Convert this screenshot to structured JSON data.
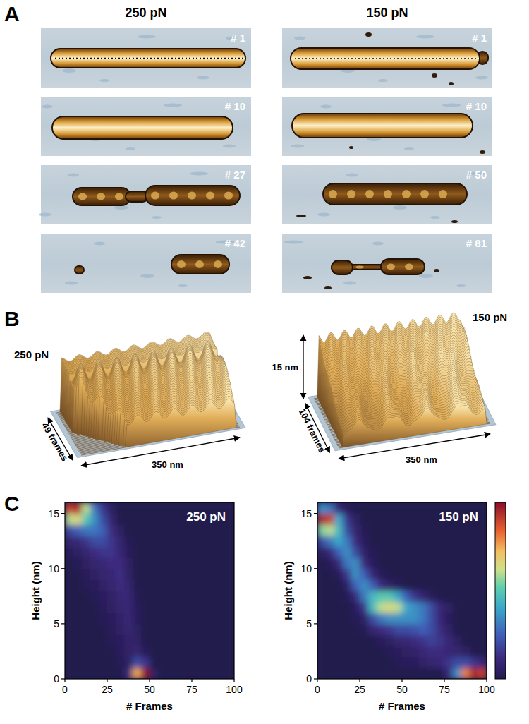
{
  "panel_labels": [
    "A",
    "B",
    "C"
  ],
  "panel_a": {
    "columns": [
      {
        "title": "250 pN",
        "frames": [
          "# 1",
          "# 10",
          "# 27",
          "# 42"
        ]
      },
      {
        "title": "150 pN",
        "frames": [
          "# 1",
          "# 10",
          "# 50",
          "# 81"
        ]
      }
    ]
  },
  "panel_b": {
    "plots": [
      {
        "title": "250 pN",
        "frames_label": "49 frames",
        "width_label": "350 nm"
      },
      {
        "title": "150 pN",
        "frames_label": "104 frames",
        "width_label": "350 nm",
        "height_label": "15 nm"
      }
    ]
  },
  "chart_data": [
    {
      "type": "heatmap",
      "title": "250 pN",
      "x_label": "# Frames",
      "y_label": "Height (nm)",
      "xlim": [
        0,
        100
      ],
      "ylim": [
        0,
        16
      ],
      "xticks": [
        0,
        25,
        50,
        75,
        100
      ],
      "yticks": [
        0,
        5,
        10,
        15
      ],
      "x_edges": [
        0,
        5,
        10,
        15,
        20,
        25,
        30,
        35,
        40,
        45,
        50,
        55,
        60,
        65,
        70,
        75,
        80,
        85,
        90,
        95,
        100
      ],
      "y_edges": [
        0,
        1,
        2,
        3,
        4,
        5,
        6,
        7,
        8,
        9,
        10,
        11,
        12,
        13,
        14,
        15,
        16
      ],
      "colorbar_range": [
        0,
        1
      ],
      "cells": [
        [
          0,
          0,
          0,
          0,
          0,
          0,
          0,
          0.1,
          0.75,
          1,
          0.05,
          0,
          0,
          0,
          0,
          0,
          0,
          0,
          0,
          0
        ],
        [
          0,
          0,
          0,
          0,
          0,
          0,
          0.02,
          0.05,
          0.2,
          0.15,
          0,
          0,
          0,
          0,
          0,
          0,
          0,
          0,
          0,
          0
        ],
        [
          0,
          0,
          0,
          0,
          0,
          0,
          0.03,
          0.06,
          0.08,
          0.03,
          0,
          0,
          0,
          0,
          0,
          0,
          0,
          0,
          0,
          0
        ],
        [
          0,
          0,
          0,
          0,
          0,
          0.02,
          0.04,
          0.07,
          0.06,
          0,
          0,
          0,
          0,
          0,
          0,
          0,
          0,
          0,
          0,
          0
        ],
        [
          0,
          0,
          0,
          0,
          0,
          0.03,
          0.05,
          0.08,
          0.05,
          0,
          0,
          0,
          0,
          0,
          0,
          0,
          0,
          0,
          0,
          0
        ],
        [
          0,
          0,
          0,
          0,
          0.02,
          0.04,
          0.06,
          0.1,
          0.04,
          0,
          0,
          0,
          0,
          0,
          0,
          0,
          0,
          0,
          0,
          0
        ],
        [
          0,
          0,
          0,
          0,
          0.03,
          0.05,
          0.08,
          0.1,
          0.03,
          0,
          0,
          0,
          0,
          0,
          0,
          0,
          0,
          0,
          0,
          0
        ],
        [
          0,
          0,
          0,
          0.02,
          0.04,
          0.06,
          0.1,
          0.1,
          0.02,
          0,
          0,
          0,
          0,
          0,
          0,
          0,
          0,
          0,
          0,
          0
        ],
        [
          0,
          0,
          0.02,
          0.03,
          0.06,
          0.08,
          0.12,
          0.08,
          0,
          0,
          0,
          0,
          0,
          0,
          0,
          0,
          0,
          0,
          0,
          0
        ],
        [
          0,
          0,
          0.03,
          0.05,
          0.08,
          0.1,
          0.13,
          0.06,
          0,
          0,
          0,
          0,
          0,
          0,
          0,
          0,
          0,
          0,
          0,
          0
        ],
        [
          0,
          0.02,
          0.05,
          0.08,
          0.1,
          0.12,
          0.12,
          0.05,
          0,
          0,
          0,
          0,
          0,
          0,
          0,
          0,
          0,
          0,
          0,
          0
        ],
        [
          0.03,
          0.05,
          0.08,
          0.12,
          0.15,
          0.15,
          0.1,
          0.03,
          0,
          0,
          0,
          0,
          0,
          0,
          0,
          0,
          0,
          0,
          0,
          0
        ],
        [
          0.08,
          0.1,
          0.15,
          0.2,
          0.2,
          0.15,
          0.08,
          0.02,
          0,
          0,
          0,
          0,
          0,
          0,
          0,
          0,
          0,
          0,
          0,
          0
        ],
        [
          0.2,
          0.25,
          0.3,
          0.3,
          0.25,
          0.12,
          0.05,
          0,
          0,
          0,
          0,
          0,
          0,
          0,
          0,
          0,
          0,
          0,
          0,
          0
        ],
        [
          0.6,
          0.65,
          0.5,
          0.35,
          0.2,
          0.08,
          0,
          0,
          0,
          0,
          0,
          0,
          0,
          0,
          0,
          0,
          0,
          0,
          0,
          0
        ],
        [
          0.9,
          0.95,
          0.6,
          0.3,
          0.15,
          0.05,
          0,
          0,
          0,
          0,
          0,
          0,
          0,
          0,
          0,
          0,
          0,
          0,
          0,
          0
        ]
      ]
    },
    {
      "type": "heatmap",
      "title": "150 pN",
      "x_label": "# Frames",
      "y_label": "Height (nm)",
      "xlim": [
        0,
        100
      ],
      "ylim": [
        0,
        16
      ],
      "xticks": [
        0,
        25,
        50,
        75,
        100
      ],
      "yticks": [
        0,
        5,
        10,
        15
      ],
      "x_edges": [
        0,
        5,
        10,
        15,
        20,
        25,
        30,
        35,
        40,
        45,
        50,
        55,
        60,
        65,
        70,
        75,
        80,
        85,
        90,
        95,
        100
      ],
      "y_edges": [
        0,
        1,
        2,
        3,
        4,
        5,
        6,
        7,
        8,
        9,
        10,
        11,
        12,
        13,
        14,
        15,
        16
      ],
      "colorbar_range": [
        0,
        1
      ],
      "cells": [
        [
          0,
          0,
          0,
          0,
          0,
          0,
          0,
          0,
          0,
          0,
          0,
          0,
          0,
          0,
          0,
          0.1,
          0.35,
          0.8,
          0.95,
          0.9
        ],
        [
          0,
          0,
          0,
          0,
          0,
          0,
          0,
          0,
          0,
          0.02,
          0.03,
          0.04,
          0.06,
          0.08,
          0.1,
          0.15,
          0.2,
          0.2,
          0.15,
          0.1
        ],
        [
          0,
          0,
          0,
          0,
          0,
          0,
          0,
          0,
          0.02,
          0.04,
          0.05,
          0.07,
          0.1,
          0.12,
          0.12,
          0.1,
          0.08,
          0.05,
          0,
          0
        ],
        [
          0,
          0,
          0,
          0,
          0,
          0,
          0,
          0.03,
          0.05,
          0.08,
          0.1,
          0.12,
          0.15,
          0.18,
          0.15,
          0.1,
          0.05,
          0,
          0,
          0
        ],
        [
          0,
          0,
          0,
          0,
          0,
          0.02,
          0.08,
          0.12,
          0.15,
          0.2,
          0.2,
          0.22,
          0.25,
          0.2,
          0.12,
          0.06,
          0,
          0,
          0,
          0
        ],
        [
          0,
          0,
          0,
          0,
          0.02,
          0.05,
          0.2,
          0.3,
          0.35,
          0.35,
          0.35,
          0.35,
          0.3,
          0.2,
          0.1,
          0.04,
          0,
          0,
          0,
          0
        ],
        [
          0,
          0,
          0,
          0,
          0.04,
          0.15,
          0.45,
          0.6,
          0.65,
          0.6,
          0.4,
          0.35,
          0.3,
          0.2,
          0.1,
          0.05,
          0,
          0,
          0,
          0
        ],
        [
          0,
          0,
          0,
          0.02,
          0.1,
          0.3,
          0.45,
          0.5,
          0.5,
          0.4,
          0.25,
          0.15,
          0.08,
          0.03,
          0,
          0,
          0,
          0,
          0,
          0
        ],
        [
          0,
          0,
          0,
          0.05,
          0.25,
          0.35,
          0.25,
          0.12,
          0.06,
          0.03,
          0,
          0,
          0,
          0,
          0,
          0,
          0,
          0,
          0,
          0
        ],
        [
          0,
          0,
          0.03,
          0.15,
          0.35,
          0.25,
          0.1,
          0.03,
          0,
          0,
          0,
          0,
          0,
          0,
          0,
          0,
          0,
          0,
          0,
          0
        ],
        [
          0,
          0.03,
          0.1,
          0.3,
          0.35,
          0.12,
          0.04,
          0,
          0,
          0,
          0,
          0,
          0,
          0,
          0,
          0,
          0,
          0,
          0,
          0
        ],
        [
          0.05,
          0.1,
          0.25,
          0.35,
          0.2,
          0.06,
          0.02,
          0,
          0,
          0,
          0,
          0,
          0,
          0,
          0,
          0,
          0,
          0,
          0,
          0
        ],
        [
          0.2,
          0.3,
          0.4,
          0.3,
          0.12,
          0.04,
          0,
          0,
          0,
          0,
          0,
          0,
          0,
          0,
          0,
          0,
          0,
          0,
          0,
          0
        ],
        [
          0.55,
          0.6,
          0.45,
          0.2,
          0.08,
          0.02,
          0,
          0,
          0,
          0,
          0,
          0,
          0,
          0,
          0,
          0,
          0,
          0,
          0,
          0
        ],
        [
          0.95,
          0.9,
          0.4,
          0.15,
          0.05,
          0,
          0,
          0,
          0,
          0,
          0,
          0,
          0,
          0,
          0,
          0,
          0,
          0,
          0,
          0
        ],
        [
          0.35,
          0.3,
          0.1,
          0.03,
          0,
          0,
          0,
          0,
          0,
          0,
          0,
          0,
          0,
          0,
          0,
          0,
          0,
          0,
          0,
          0
        ]
      ]
    }
  ]
}
